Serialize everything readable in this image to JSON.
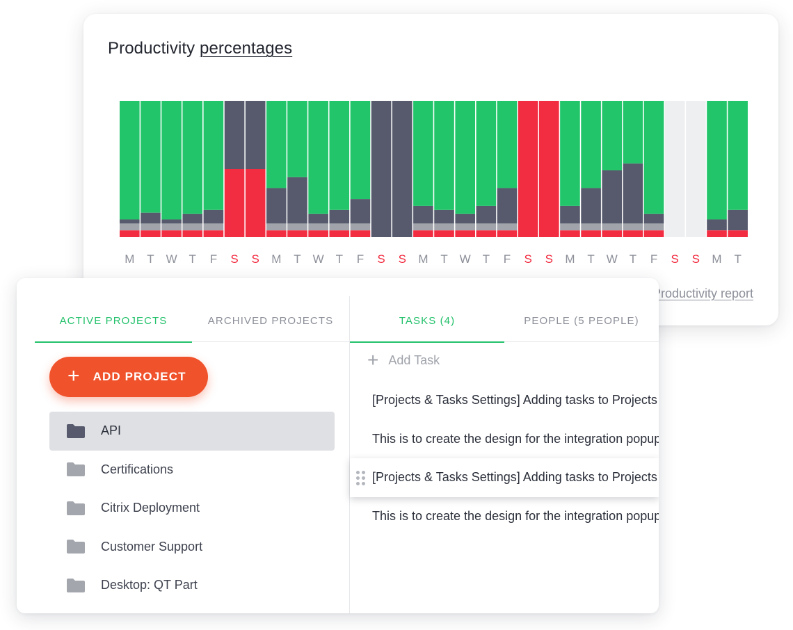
{
  "productivity": {
    "title_part1": "Productivity ",
    "title_part2": "percentages",
    "report_link": "Productivity report",
    "colors": {
      "productive": "#23c56b",
      "neutral": "#565a6c",
      "neutral_band": "#a2a4ab",
      "unproductive": "#f22c41",
      "no_data": "#eeeff1",
      "weekday_label": "#8c8f99",
      "weekend_label": "#f22c41"
    }
  },
  "chart_data": {
    "type": "bar",
    "stacked": true,
    "categories": [
      "M",
      "T",
      "W",
      "T",
      "F",
      "S",
      "S",
      "M",
      "T",
      "W",
      "T",
      "F",
      "S",
      "S",
      "M",
      "T",
      "W",
      "T",
      "F",
      "S",
      "S",
      "M",
      "T",
      "W",
      "T",
      "F",
      "S",
      "S",
      "M",
      "T"
    ],
    "weekend": [
      false,
      false,
      false,
      false,
      false,
      true,
      true,
      false,
      false,
      false,
      false,
      false,
      true,
      true,
      false,
      false,
      false,
      false,
      false,
      true,
      true,
      false,
      false,
      false,
      false,
      false,
      true,
      true,
      false,
      false
    ],
    "ylim": [
      0,
      100
    ],
    "series": [
      {
        "values": [
          5,
          5,
          5,
          5,
          5,
          50,
          50,
          5,
          5,
          5,
          5,
          5,
          0,
          0,
          5,
          5,
          5,
          5,
          5,
          100,
          100,
          5,
          5,
          5,
          5,
          5,
          0,
          0,
          5,
          5
        ]
      },
      {
        "values": [
          5,
          5,
          5,
          5,
          5,
          0,
          0,
          5,
          5,
          5,
          5,
          5,
          0,
          0,
          5,
          5,
          5,
          5,
          5,
          0,
          0,
          5,
          5,
          5,
          5,
          5,
          0,
          0,
          0,
          0
        ]
      },
      {
        "values": [
          3,
          8,
          3,
          7,
          10,
          50,
          50,
          26,
          34,
          7,
          10,
          18,
          100,
          100,
          13,
          10,
          7,
          13,
          26,
          0,
          0,
          13,
          26,
          39,
          44,
          7,
          0,
          0,
          8,
          15
        ]
      },
      {
        "values": [
          87,
          82,
          87,
          83,
          80,
          0,
          0,
          64,
          56,
          83,
          80,
          72,
          0,
          0,
          77,
          80,
          83,
          77,
          64,
          0,
          0,
          77,
          64,
          51,
          46,
          83,
          0,
          0,
          87,
          80
        ]
      }
    ],
    "no_data": [
      false,
      false,
      false,
      false,
      false,
      false,
      false,
      false,
      false,
      false,
      false,
      false,
      false,
      false,
      false,
      false,
      false,
      false,
      false,
      false,
      false,
      false,
      false,
      false,
      false,
      false,
      true,
      true,
      false,
      false
    ]
  },
  "projects": {
    "tabs": [
      "ACTIVE PROJECTS",
      "ARCHIVED PROJECTS"
    ],
    "active_tab": 0,
    "add_button": "ADD PROJECT",
    "add_icon": "plus-icon",
    "folder_icon": "folder-icon",
    "items": [
      {
        "label": "API",
        "selected": true
      },
      {
        "label": "Certifications",
        "selected": false
      },
      {
        "label": "Citrix Deployment",
        "selected": false
      },
      {
        "label": "Customer Support",
        "selected": false
      },
      {
        "label": "Desktop: QT Part",
        "selected": false
      }
    ],
    "colors": {
      "accent": "#23c16b",
      "add_button": "#f0522b",
      "selected_bg": "#dfe0e4",
      "folder_selected": "#565a6c",
      "folder": "#a4a6ad"
    }
  },
  "tasks": {
    "tabs": [
      "TASKS (4)",
      "PEOPLE (5 PEOPLE)"
    ],
    "active_tab": 0,
    "add_task": "Add Task",
    "items": [
      "[Projects & Tasks Settings] Adding tasks to Projects",
      "This is to create the design for the integration popup",
      "[Projects & Tasks Settings] Adding tasks to Projects",
      "This is to create the design for the integration popup"
    ],
    "dragging_index": 2
  }
}
